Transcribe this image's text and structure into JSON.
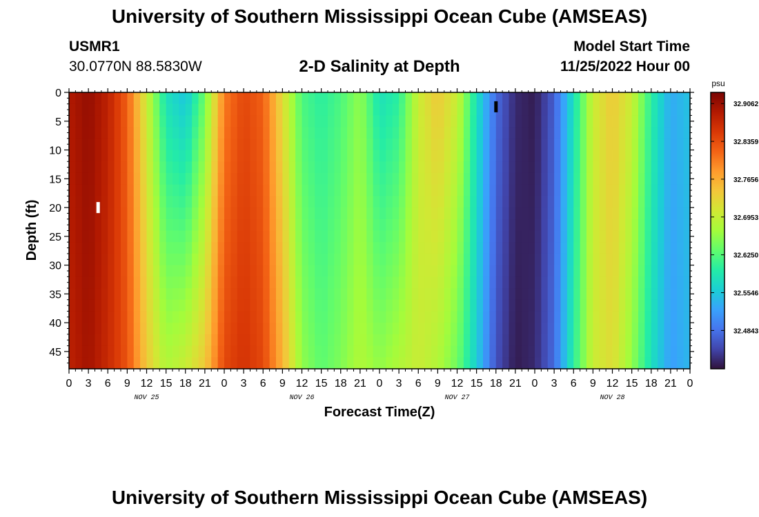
{
  "page": {
    "title": "University of Southern Mississippi Ocean Cube (AMSEAS)",
    "title_repeat": "University of Southern Mississippi Ocean Cube (AMSEAS)",
    "station_id": "USMR1",
    "station_coords": "30.0770N  88.5830W",
    "model_start_label": "Model Start Time",
    "model_start_value": "11/25/2022 Hour 00"
  },
  "chart_data": {
    "type": "heatmap",
    "title": "2-D Salinity at Depth",
    "xlabel": "Forecast Time(Z)",
    "ylabel": "Depth (ft)",
    "xlim": [
      0,
      96
    ],
    "ylim": [
      0,
      48
    ],
    "x_unit": "hours from 11/25/2022 00Z",
    "x_tick_labels": [
      "0",
      "3",
      "6",
      "9",
      "12",
      "15",
      "18",
      "21",
      "0",
      "3",
      "6",
      "9",
      "12",
      "15",
      "18",
      "21",
      "0",
      "3",
      "6",
      "9",
      "12",
      "15",
      "18",
      "21",
      "0",
      "3",
      "6",
      "9",
      "12",
      "15",
      "18",
      "21",
      "0"
    ],
    "day_labels": [
      "NOV 25",
      "NOV 26",
      "NOV 27",
      "NOV 28"
    ],
    "y_ticks": [
      0,
      5,
      10,
      15,
      20,
      25,
      30,
      35,
      40,
      45
    ],
    "colorbar": {
      "unit": "psu",
      "min": 32.413,
      "max": 32.927,
      "tick_labels": [
        "32.9062",
        "32.8359",
        "32.7656",
        "32.6953",
        "32.6250",
        "32.5546",
        "32.4843"
      ],
      "colormap": [
        "#30123b",
        "#4145ab",
        "#4675ed",
        "#39a2fc",
        "#1bcfd4",
        "#24eca6",
        "#61fc6c",
        "#a4fc3b",
        "#d1e834",
        "#f3c63a",
        "#fe9b2d",
        "#f36315",
        "#d93806",
        "#b11901",
        "#7a0403"
      ]
    },
    "salinity_profile_by_hour": {
      "x": [
        0,
        3,
        6,
        9,
        12,
        15,
        18,
        21,
        24,
        27,
        30,
        33,
        36,
        39,
        42,
        45,
        48,
        51,
        54,
        57,
        60,
        63,
        66,
        69,
        72,
        75,
        78,
        81,
        84,
        87,
        90,
        93,
        96
      ],
      "surface_psu": [
        32.89,
        32.91,
        32.88,
        32.82,
        32.7,
        32.58,
        32.55,
        32.64,
        32.8,
        32.84,
        32.82,
        32.72,
        32.62,
        32.6,
        32.62,
        32.66,
        32.58,
        32.6,
        32.7,
        32.74,
        32.7,
        32.58,
        32.48,
        32.43,
        32.42,
        32.47,
        32.58,
        32.7,
        32.74,
        32.7,
        32.6,
        32.53,
        32.55
      ],
      "bottom_psu": [
        32.88,
        32.9,
        32.87,
        32.83,
        32.74,
        32.68,
        32.7,
        32.74,
        32.84,
        32.86,
        32.84,
        32.76,
        32.66,
        32.63,
        32.65,
        32.68,
        32.66,
        32.68,
        32.7,
        32.68,
        32.64,
        32.56,
        32.46,
        32.42,
        32.43,
        32.48,
        32.6,
        32.7,
        32.72,
        32.66,
        32.58,
        32.52,
        32.54
      ]
    },
    "markers": [
      {
        "x": 4.5,
        "depth": 20,
        "color": "#ffffff"
      },
      {
        "x": 66,
        "depth": 2.5,
        "color": "#000000"
      }
    ]
  }
}
